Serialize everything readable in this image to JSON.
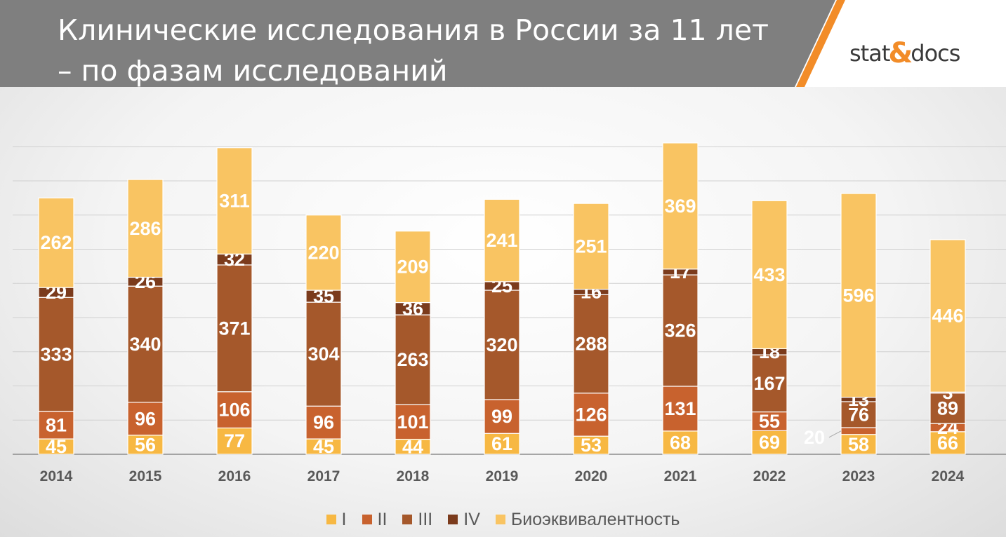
{
  "header": {
    "title_line1": "Клинические исследования в России за 11 лет",
    "title_line2": "– по фазам исследований",
    "logo_left": "stat",
    "logo_amp": "&",
    "logo_right": "docs",
    "colors": {
      "band": "#7f7f7f",
      "accent": "#f28c28"
    }
  },
  "chart_data": {
    "type": "bar",
    "stacked": true,
    "grid": true,
    "legend_position": "bottom",
    "categories": [
      "2014",
      "2015",
      "2016",
      "2017",
      "2018",
      "2019",
      "2020",
      "2021",
      "2022",
      "2023",
      "2024"
    ],
    "series": [
      {
        "name": "I",
        "color": "#f7b843",
        "values": [
          45,
          56,
          77,
          45,
          44,
          61,
          53,
          68,
          69,
          58,
          66
        ]
      },
      {
        "name": "II",
        "color": "#c8622e",
        "values": [
          81,
          96,
          106,
          96,
          101,
          99,
          126,
          131,
          55,
          20,
          24
        ]
      },
      {
        "name": "III",
        "color": "#a5582b",
        "values": [
          333,
          340,
          371,
          304,
          263,
          320,
          288,
          326,
          167,
          76,
          89
        ]
      },
      {
        "name": "IV",
        "color": "#7b3b1c",
        "values": [
          29,
          26,
          32,
          35,
          36,
          25,
          16,
          17,
          18,
          13,
          3
        ]
      },
      {
        "name": "Биоэквивалентность",
        "color": "#f9c462",
        "values": [
          262,
          286,
          311,
          220,
          209,
          241,
          251,
          369,
          433,
          596,
          446
        ]
      }
    ],
    "ylim": [
      0,
      920
    ],
    "title": "",
    "xlabel": "",
    "ylabel": ""
  }
}
